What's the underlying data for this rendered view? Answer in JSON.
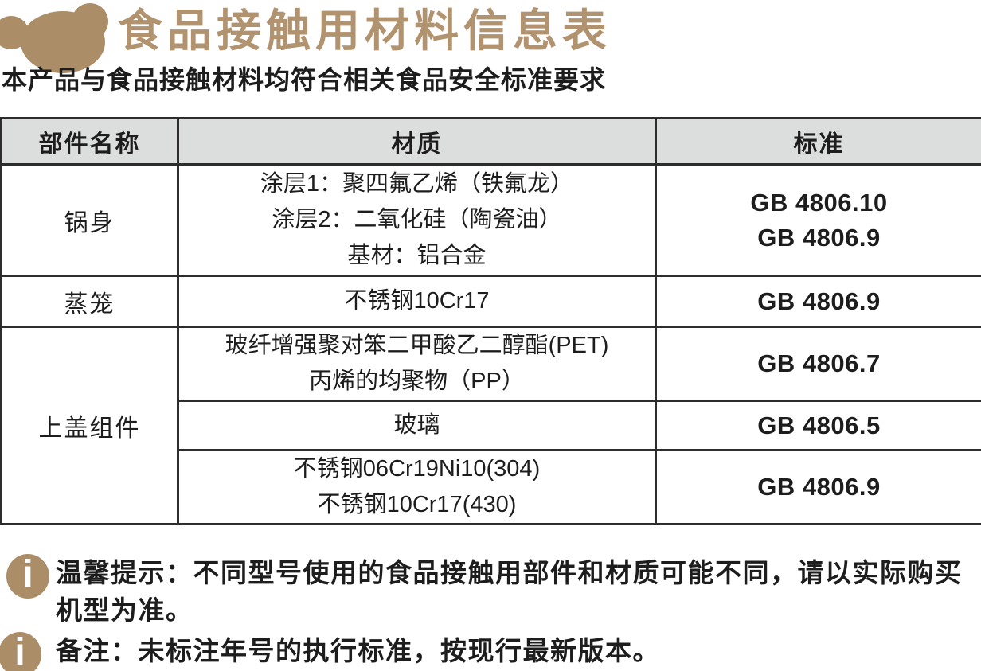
{
  "header": {
    "logo_icon": "bear-icon",
    "title": "食品接触用材料信息表",
    "subtitle": "本产品与食品接触材料均符合相关食品安全标准要求"
  },
  "table": {
    "columns": [
      "部件名称",
      "材质",
      "标准"
    ],
    "rows": [
      {
        "part": "锅身",
        "material_lines": [
          "涂层1：聚四氟乙烯（铁氟龙）",
          "涂层2：二氧化硅（陶瓷油）",
          "基材：铝合金"
        ],
        "standard_lines": [
          "GB 4806.10",
          "GB 4806.9"
        ]
      },
      {
        "part": "蒸笼",
        "material_lines": [
          "不锈钢10Cr17"
        ],
        "standard_lines": [
          "GB 4806.9"
        ]
      },
      {
        "part": "上盖组件",
        "sub_rows": [
          {
            "material_lines": [
              "玻纤增强聚对笨二甲酸乙二醇酯(PET)",
              "丙烯的均聚物（PP）"
            ],
            "standard_lines": [
              "GB 4806.7"
            ]
          },
          {
            "material_lines": [
              "玻璃"
            ],
            "standard_lines": [
              "GB 4806.5"
            ]
          },
          {
            "material_lines": [
              "不锈钢06Cr19Ni10(304)",
              "不锈钢10Cr17(430)"
            ],
            "standard_lines": [
              "GB 4806.9"
            ]
          }
        ]
      }
    ]
  },
  "notes": [
    {
      "icon": "info-icon",
      "glyph": "i",
      "lines": [
        "温馨提示：不同型号使用的食品接触用部件和材质可能不同，请以实际购买",
        "机型为准。"
      ]
    },
    {
      "icon": "info-icon",
      "glyph": "i",
      "lines": [
        "备注：未标注年号的执行标准，按现行最新版本。"
      ]
    }
  ],
  "colors": {
    "brand": "#ab8d68",
    "title": "#b1936f",
    "text": "#1d1d1d",
    "table_border": "#2d2d2d",
    "table_header_bg": "#dcdddd",
    "background": "#ffffff"
  }
}
